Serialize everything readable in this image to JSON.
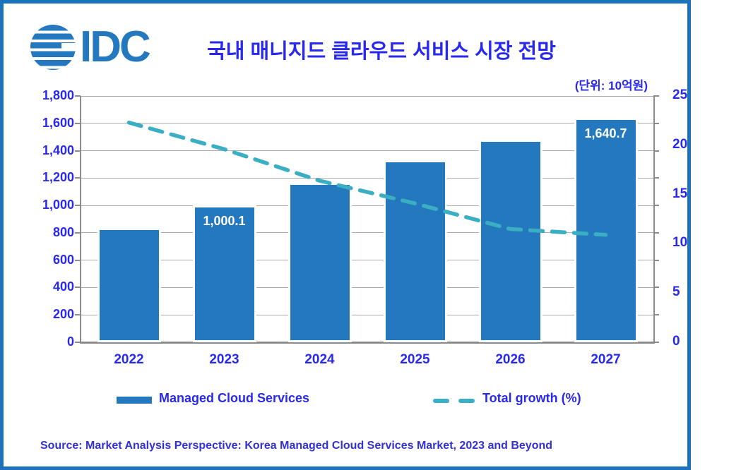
{
  "header": {
    "logo_text": "IDC",
    "title": "국내 매니지드 클라우드 서비스 시장 전망",
    "unit_label": "(단위: 10억원)"
  },
  "chart_data": {
    "type": "combo",
    "categories": [
      "2022",
      "2023",
      "2024",
      "2025",
      "2026",
      "2027"
    ],
    "series": [
      {
        "name": "Managed Cloud Services",
        "type": "bar",
        "axis": "left",
        "values": [
          836,
          1000.1,
          1164,
          1330,
          1480,
          1640.7
        ],
        "data_labels": [
          "",
          "1,000.1",
          "",
          "",
          "",
          "1,640.7"
        ]
      },
      {
        "name": "Total growth (%)",
        "type": "line",
        "axis": "right",
        "style": "dashed",
        "values": [
          22.3,
          19.6,
          16.4,
          14.1,
          11.5,
          10.9
        ]
      }
    ],
    "left_axis": {
      "min": 0,
      "max": 1800,
      "step": 200,
      "tick_labels": [
        "0",
        "200",
        "400",
        "600",
        "800",
        "1,000",
        "1,200",
        "1,400",
        "1,600",
        "1,800"
      ]
    },
    "right_axis": {
      "min": 0,
      "max": 25,
      "step": 5,
      "tick_labels": [
        "0",
        "5",
        "10",
        "15",
        "20",
        "25"
      ]
    },
    "grid": true,
    "legend_position": "bottom"
  },
  "source": "Source: Market Analysis Perspective: Korea Managed Cloud Services Market, 2023 and Beyond",
  "colors": {
    "frame_border": "#1B74BB",
    "bar_fill": "#2478BE",
    "bar_border": "#FFFFFF",
    "line": "#3AAEC4",
    "text_blue": "#2828EE",
    "source_text": "#3232D4",
    "gridline": "#AAAAAA",
    "axis_line": "#8C8C8C",
    "bar_label": "#FFFFFF",
    "logo": "#2478BE"
  }
}
